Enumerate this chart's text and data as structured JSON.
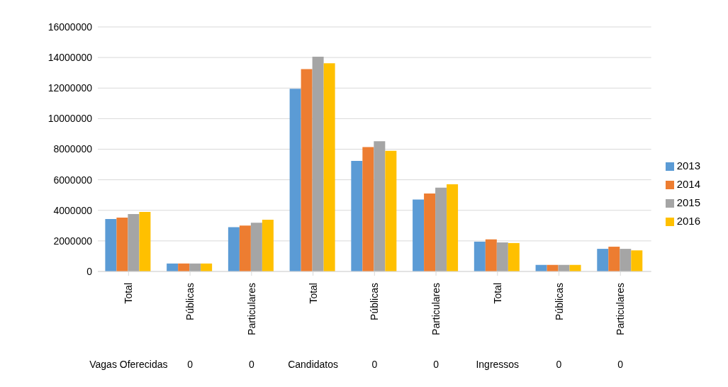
{
  "chart_data": {
    "type": "bar",
    "categories": [
      "Total",
      "Públicas",
      "Particulares",
      "Total",
      "Públicas",
      "Particulares",
      "Total",
      "Públicas",
      "Particulares"
    ],
    "series": [
      {
        "name": "2013",
        "color": "#5b9bd5",
        "values": [
          3430000,
          520000,
          2900000,
          11950000,
          7240000,
          4710000,
          1950000,
          430000,
          1480000
        ]
      },
      {
        "name": "2014",
        "color": "#ed7d31",
        "values": [
          3520000,
          520000,
          3000000,
          13240000,
          8140000,
          5100000,
          2100000,
          430000,
          1620000
        ]
      },
      {
        "name": "2015",
        "color": "#a5a5a5",
        "values": [
          3760000,
          520000,
          3190000,
          14050000,
          8520000,
          5480000,
          1900000,
          430000,
          1480000
        ]
      },
      {
        "name": "2016",
        "color": "#ffc000",
        "values": [
          3900000,
          520000,
          3380000,
          13620000,
          7900000,
          5710000,
          1860000,
          430000,
          1380000
        ]
      }
    ],
    "annotations": [
      "Vagas Oferecidas",
      "0",
      "0",
      "Candidatos",
      "0",
      "0",
      "Ingressos",
      "0",
      "0"
    ],
    "ylim": [
      0,
      16000000
    ],
    "yticks": [
      0,
      2000000,
      4000000,
      6000000,
      8000000,
      10000000,
      12000000,
      14000000,
      16000000
    ],
    "grid": "y",
    "legend": "right"
  }
}
